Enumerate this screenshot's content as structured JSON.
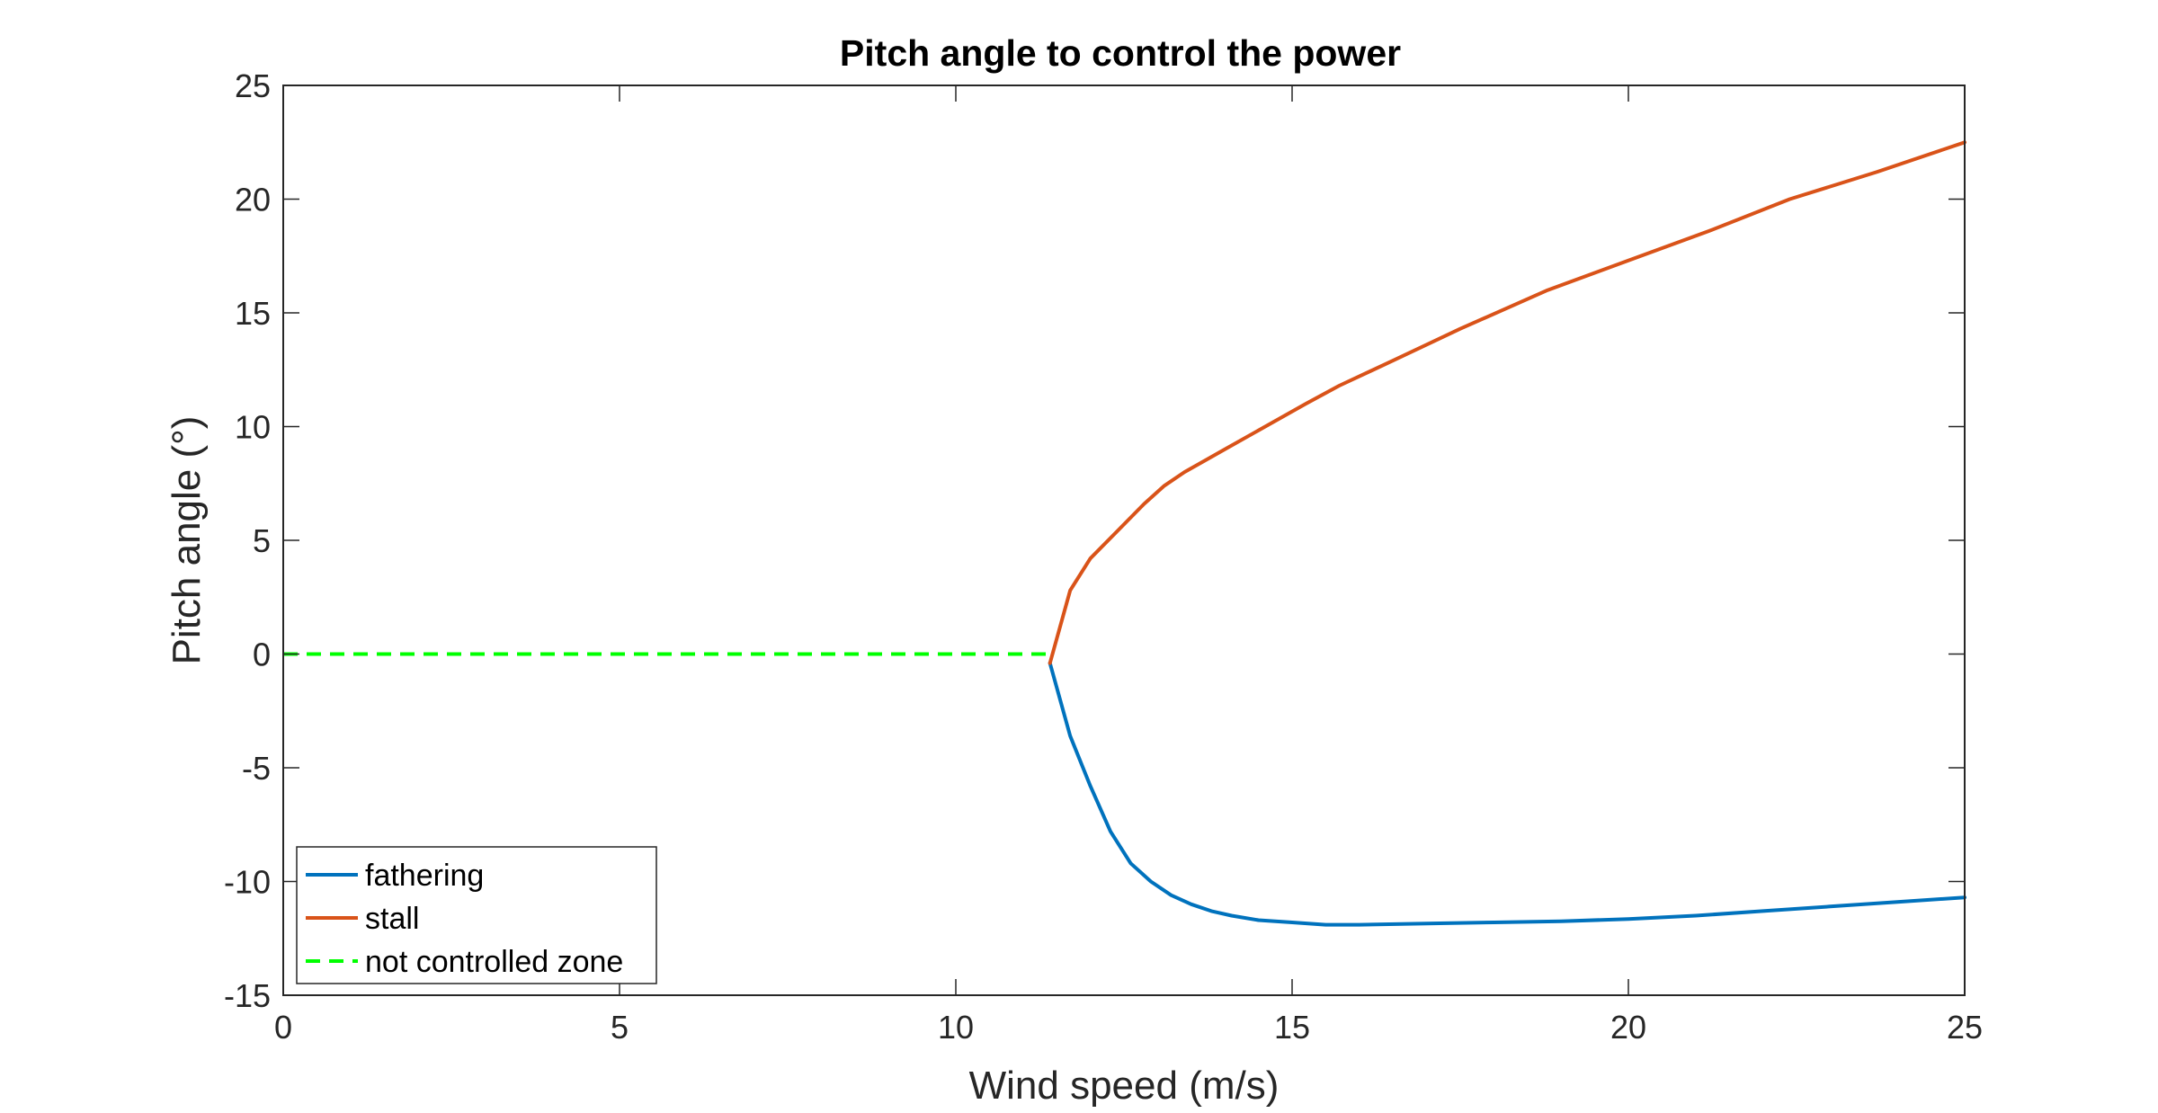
{
  "chart_data": {
    "type": "line",
    "title": "Pitch angle to control the power",
    "xlabel": "Wind speed (m/s)",
    "ylabel": "Pitch angle (°)",
    "xlim": [
      0,
      25
    ],
    "ylim": [
      -15,
      25
    ],
    "xticks": [
      0,
      5,
      10,
      15,
      20,
      25
    ],
    "yticks": [
      -15,
      -10,
      -5,
      0,
      5,
      10,
      15,
      20,
      25
    ],
    "grid": false,
    "legend_position": "bottom-left",
    "series": [
      {
        "name": "fathering",
        "color": "#0072BD",
        "style": "solid",
        "x": [
          11.4,
          11.7,
          12.0,
          12.3,
          12.6,
          12.9,
          13.2,
          13.5,
          13.8,
          14.1,
          14.5,
          15.0,
          15.5,
          16.0,
          17.0,
          18.0,
          19.0,
          20.0,
          21.0,
          22.0,
          23.0,
          24.0,
          25.0
        ],
        "y": [
          -0.4,
          -3.6,
          -5.8,
          -7.8,
          -9.2,
          -10.0,
          -10.6,
          -11.0,
          -11.3,
          -11.5,
          -11.7,
          -11.8,
          -11.9,
          -11.9,
          -11.85,
          -11.8,
          -11.75,
          -11.65,
          -11.5,
          -11.3,
          -11.1,
          -10.9,
          -10.7
        ]
      },
      {
        "name": "stall",
        "color": "#D95319",
        "style": "solid",
        "x": [
          11.4,
          11.7,
          12.0,
          12.4,
          12.8,
          13.1,
          13.4,
          14.0,
          14.6,
          15.2,
          15.7,
          16.5,
          17.5,
          18.8,
          20.0,
          21.2,
          22.4,
          23.7,
          25.0
        ],
        "y": [
          -0.4,
          2.8,
          4.2,
          5.4,
          6.6,
          7.4,
          8.0,
          9.0,
          10.0,
          11.0,
          11.8,
          12.9,
          14.3,
          16.0,
          17.3,
          18.6,
          20.0,
          21.2,
          22.5
        ]
      },
      {
        "name": "not controlled zone",
        "color": "#00FF00",
        "style": "dashed",
        "x": [
          0,
          11.4
        ],
        "y": [
          0,
          0
        ]
      }
    ]
  }
}
